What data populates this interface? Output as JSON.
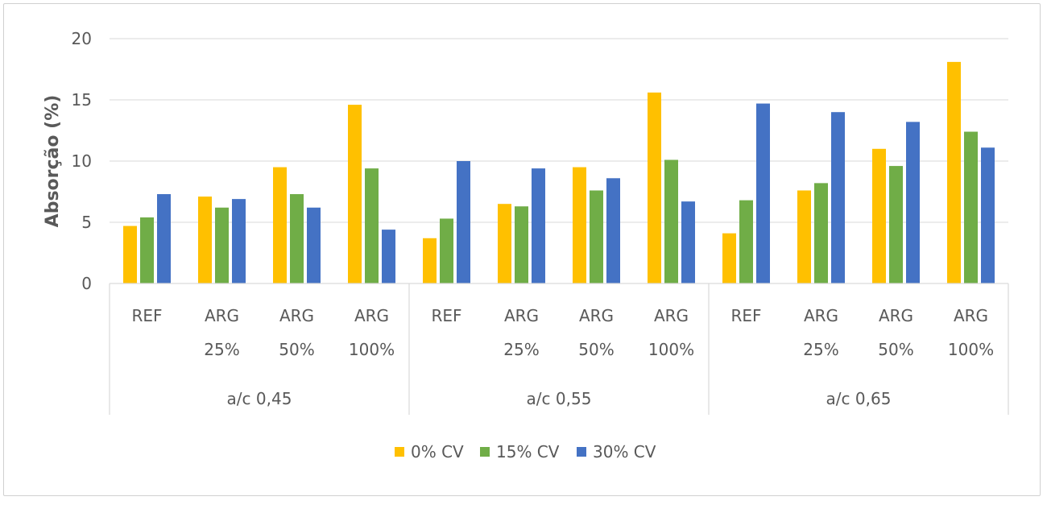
{
  "chart_data": {
    "type": "bar",
    "ylabel": "Absorção (%)",
    "xlabel": "",
    "ylim": [
      0,
      20
    ],
    "yticks": [
      0,
      5,
      10,
      15,
      20
    ],
    "grid": true,
    "legend_position": "bottom",
    "groups": [
      {
        "label": "a/c 0,45",
        "categories": [
          [
            "REF"
          ],
          [
            "ARG",
            "25%"
          ],
          [
            "ARG",
            "50%"
          ],
          [
            "ARG",
            "100%"
          ]
        ]
      },
      {
        "label": "a/c 0,55",
        "categories": [
          [
            "REF"
          ],
          [
            "ARG",
            "25%"
          ],
          [
            "ARG",
            "50%"
          ],
          [
            "ARG",
            "100%"
          ]
        ]
      },
      {
        "label": "a/c 0,65",
        "categories": [
          [
            "REF"
          ],
          [
            "ARG",
            "25%"
          ],
          [
            "ARG",
            "50%"
          ],
          [
            "ARG",
            "100%"
          ]
        ]
      }
    ],
    "series": [
      {
        "name": "0% CV",
        "color": "#FFC000",
        "values": [
          4.7,
          7.1,
          9.5,
          14.6,
          3.7,
          6.5,
          9.5,
          15.6,
          4.1,
          7.6,
          11.0,
          18.1
        ]
      },
      {
        "name": "15% CV",
        "color": "#70AD47",
        "values": [
          5.4,
          6.2,
          7.3,
          9.4,
          5.3,
          6.3,
          7.6,
          10.1,
          6.8,
          8.2,
          9.6,
          12.4
        ]
      },
      {
        "name": "30% CV",
        "color": "#4472C4",
        "values": [
          7.3,
          6.9,
          6.2,
          4.4,
          10.0,
          9.4,
          8.6,
          6.7,
          14.7,
          14.0,
          13.2,
          11.1
        ]
      }
    ]
  }
}
